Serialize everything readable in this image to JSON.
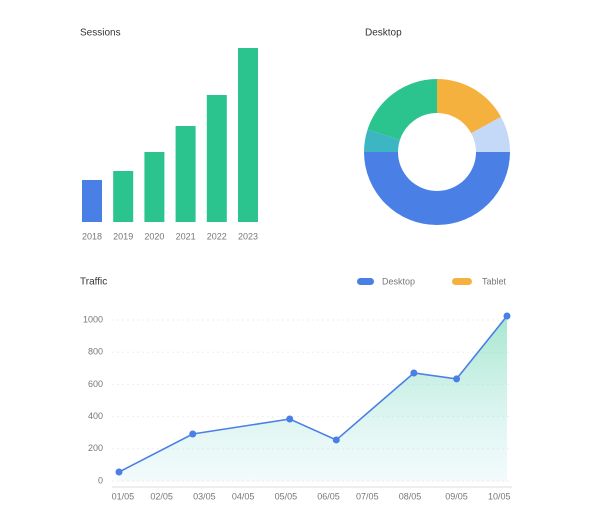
{
  "chart_data": [
    {
      "type": "bar",
      "title": "Sessions",
      "categories": [
        "2018",
        "2019",
        "2020",
        "2021",
        "2022",
        "2023"
      ],
      "values": [
        42,
        51,
        70,
        96,
        127,
        174
      ],
      "colors": [
        "#4a7fe6",
        "#2bc48f",
        "#2bc48f",
        "#2bc48f",
        "#2bc48f",
        "#2bc48f"
      ],
      "ylim": [
        0,
        180
      ]
    },
    {
      "type": "donut",
      "title": "Desktop",
      "values": [
        17,
        8,
        50,
        5,
        20
      ],
      "colors": [
        "#f5b13d",
        "#c4d8f8",
        "#4a7fe6",
        "#3db6c4",
        "#2bc48f"
      ]
    },
    {
      "type": "line",
      "title": "Traffic",
      "x": [
        0,
        19,
        44,
        56,
        76,
        87,
        100
      ],
      "xlim": [
        0,
        100
      ],
      "xticks": [
        {
          "value": 1,
          "label": "01/05"
        },
        {
          "value": 11,
          "label": "02/05"
        },
        {
          "value": 22,
          "label": "03/05"
        },
        {
          "value": 32,
          "label": "04/05"
        },
        {
          "value": 43,
          "label": "05/05"
        },
        {
          "value": 54,
          "label": "06/05"
        },
        {
          "value": 64,
          "label": "07/05"
        },
        {
          "value": 75,
          "label": "08/05"
        },
        {
          "value": 87,
          "label": "09/05"
        },
        {
          "value": 98,
          "label": "10/05"
        }
      ],
      "ylim": [
        0,
        1000
      ],
      "yticks": [
        0,
        200,
        400,
        600,
        800,
        1000
      ],
      "grid": true,
      "series": [
        {
          "name": "Desktop",
          "color": "#4a7fe6",
          "values": [
            56,
            292,
            385,
            255,
            671,
            634,
            1025
          ]
        }
      ],
      "legend_extra": [
        {
          "name": "Tablet",
          "color": "#f5b13d"
        }
      ]
    }
  ]
}
